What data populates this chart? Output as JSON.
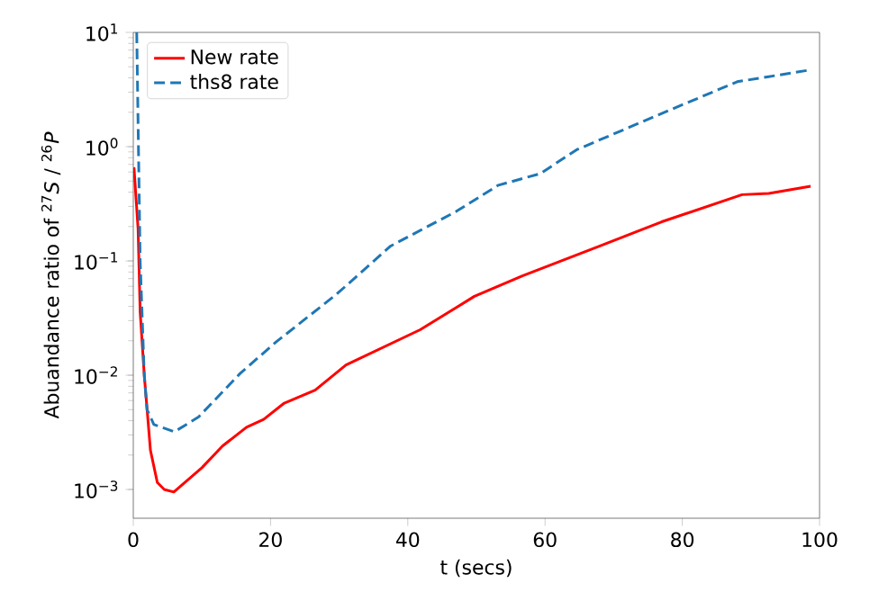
{
  "chart_data": {
    "type": "line",
    "xlabel": "t (secs)",
    "ylabel": "Abuandance ratio of $^{27}$*S* / $^{26}$*P*",
    "log": "y",
    "xlim": [
      0,
      100
    ],
    "ylim": [
      0.00056,
      10
    ],
    "xticks": [
      0,
      20,
      40,
      60,
      80,
      100
    ],
    "yticks": [
      {
        "value": 0.001,
        "label": "10$^{−3}$"
      },
      {
        "value": 0.01,
        "label": "10$^{−2}$"
      },
      {
        "value": 0.1,
        "label": "10$^{−1}$"
      },
      {
        "value": 1,
        "label": "10$^{0}$"
      },
      {
        "value": 10,
        "label": "10$^{1}$"
      }
    ],
    "legend": "top left",
    "grid": false,
    "series": [
      {
        "name": "New rate",
        "color": "#ff0000",
        "line_style": "solid",
        "x": [
          0.1,
          0.7,
          1.0,
          1.6,
          2.5,
          3.5,
          4.5,
          5.9,
          10,
          13,
          16.5,
          19,
          22,
          26.5,
          31,
          41.8,
          49.7,
          56.7,
          68,
          77,
          88.7,
          92.6,
          98.7
        ],
        "values": [
          0.66,
          0.19,
          0.036,
          0.01,
          0.0022,
          0.00115,
          0.001,
          0.00095,
          0.00155,
          0.0024,
          0.0035,
          0.0041,
          0.0057,
          0.0074,
          0.0123,
          0.025,
          0.049,
          0.074,
          0.135,
          0.22,
          0.38,
          0.39,
          0.45
        ]
      },
      {
        "name": "ths8 rate",
        "color": "#1f77b4",
        "line_style": "dashed",
        "x": [
          0.5,
          1.0,
          1.6,
          2,
          3,
          6,
          9.5,
          15.6,
          20.8,
          29.6,
          37.5,
          47,
          53.2,
          59.3,
          64.6,
          77,
          88,
          92.6,
          98.7
        ],
        "values": [
          10,
          0.1,
          0.01,
          0.005,
          0.0037,
          0.0032,
          0.0043,
          0.0104,
          0.0195,
          0.051,
          0.135,
          0.27,
          0.46,
          0.58,
          0.94,
          1.95,
          3.7,
          4.1,
          4.7
        ]
      }
    ]
  }
}
